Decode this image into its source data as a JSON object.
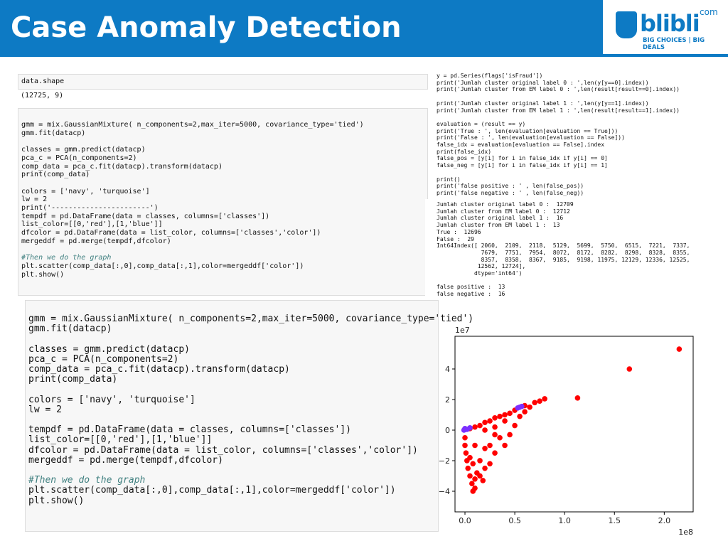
{
  "header": {
    "title": "Case Anomaly Detection"
  },
  "logo": {
    "brand": "blibli",
    "suffix": "com",
    "tagline_left": "BIG CHOICES",
    "tagline_right": "BIG DEALS"
  },
  "cell_shape": {
    "input": "data.shape",
    "output": "(12725, 9)"
  },
  "cell_gmm": {
    "blocks": [
      [
        "gmm = mix.GaussianMixture( n_components=2,max_iter=5000, covariance_type='tied')",
        "gmm.fit(datacp)"
      ],
      [
        "classes = gmm.predict(datacp)",
        "pca_c = PCA(n_components=2)",
        "comp_data = pca_c.fit(datacp).transform(datacp)",
        "print(comp_data)"
      ],
      [
        "colors = ['navy', 'turquoise']",
        "lw = 2",
        "print('-----------------------')",
        "tempdf = pd.DataFrame(data = classes, columns=['classes'])",
        "list_color=[[0,'red'],[1,'blue']]",
        "dfcolor = pd.DataFrame(data = list_color, columns=['classes','color'])",
        "mergeddf = pd.merge(tempdf,dfcolor)"
      ],
      [
        "#Then we do the graph",
        "plt.scatter(comp_data[:,0],comp_data[:,1],color=mergeddf['color'])",
        "plt.show()"
      ]
    ]
  },
  "cell_eval": {
    "blocks": [
      [
        "y = pd.Series(flags['isFraud'])",
        "print('Jumlah cluster original label 0 : ',len(y[y==0].index))",
        "print('Jumlah cluster from EM label 0 : ',len(result[result==0].index))"
      ],
      [
        "print('Jumlah cluster original label 1 : ',len(y[y==1].index))",
        "print('Jumlah cluster from EM label 1 : ',len(result[result==1].index))"
      ],
      [
        "evaluation = (result == y)",
        "print('True : ', len(evaluation[evaluation == True]))",
        "print('False : ', len(evaluation[evaluation == False]))",
        "false_idx = evaluation[evaluation == False].index",
        "print(false_idx)",
        "false_pos = [y[i] for i in false_idx if y[i] == 0]",
        "false_neg = [y[i] for i in false_idx if y[i] == 1]"
      ],
      [
        "print()",
        "print('false positive : ' , len(false_pos))",
        "print('false negative : ' , len(false_neg))"
      ]
    ],
    "output_blocks": [
      [
        "Jumlah cluster original label 0 :  12709",
        "Jumlah cluster from EM label 0 :  12712",
        "Jumlah cluster original label 1 :  16",
        "Jumlah cluster from EM label 1 :  13",
        "True :  12696",
        "False :  29",
        "Int64Index([ 2060,  2109,  2118,  5129,  5699,  5750,  6515,  7221,  7337,",
        "             7679,  7751,  7954,  8072,  8172,  8282,  8298,  8328,  8355,",
        "             8357,  8358,  8367,  9185,  9198, 11975, 12129, 12336, 12525,",
        "            12562, 12724],",
        "           dtype='int64')"
      ],
      [
        "false positive :  13",
        "false negative :  16"
      ]
    ]
  },
  "cell_gmm_zoom": {
    "blocks": [
      [
        "gmm = mix.GaussianMixture( n_components=2,max_iter=5000, covariance_type='tied')",
        "gmm.fit(datacp)"
      ],
      [
        "classes = gmm.predict(datacp)",
        "pca_c = PCA(n_components=2)",
        "comp_data = pca_c.fit(datacp).transform(datacp)",
        "print(comp_data)"
      ],
      [
        "colors = ['navy', 'turquoise']",
        "lw = 2"
      ],
      [
        "tempdf = pd.DataFrame(data = classes, columns=['classes'])",
        "list_color=[[0,'red'],[1,'blue']]",
        "dfcolor = pd.DataFrame(data = list_color, columns=['classes','color'])",
        "mergeddf = pd.merge(tempdf,dfcolor)"
      ],
      [
        "#Then we do the graph",
        "plt.scatter(comp_data[:,0],comp_data[:,1],color=mergeddf['color'])",
        "plt.show()"
      ]
    ]
  },
  "scatter_plot": {
    "type": "scatter",
    "x_offset_label": "1e8",
    "y_offset_label": "1e7",
    "xlim": [
      -0.1,
      2.29
    ],
    "ylim": [
      -5.35,
      6.14
    ],
    "xticks": [
      {
        "value": 0,
        "label": "0.0"
      },
      {
        "value": 0.5,
        "label": "0.5"
      },
      {
        "value": 1,
        "label": "1.0"
      },
      {
        "value": 1.5,
        "label": "1.5"
      },
      {
        "value": 2,
        "label": "2.0"
      }
    ],
    "yticks": [
      {
        "value": -4,
        "label": "−4"
      },
      {
        "value": -2,
        "label": "−2"
      },
      0,
      2,
      4
    ],
    "series": [
      {
        "color": "#ff0000",
        "x": [
          2.15,
          1.65,
          1.13,
          0.8,
          0.75,
          0.7,
          0.6,
          0.5,
          0.45,
          0.4,
          0.35,
          0.3,
          0.25,
          0.2,
          0.15,
          0.1,
          0.05,
          0.0,
          0.0,
          0.01,
          0.02,
          0.03,
          0.05,
          0.07,
          0.08,
          0.1,
          0.15,
          0.2,
          0.25,
          0.3,
          0.4,
          0.35,
          0.45,
          0.5,
          0.3,
          0.2,
          0.15,
          0.12,
          0.25,
          0.1,
          0.05,
          0.4,
          0.3,
          0.2,
          0.6,
          0.65,
          0.55,
          0.1,
          0.18,
          0.08
        ],
        "y": [
          5.3,
          4.0,
          2.1,
          2.05,
          1.9,
          1.8,
          1.6,
          1.3,
          1.1,
          1.0,
          0.9,
          0.8,
          0.6,
          0.5,
          0.3,
          0.2,
          0.1,
          -0.5,
          -1.0,
          -1.5,
          -2.0,
          -2.5,
          -3.0,
          -3.5,
          -4.0,
          -3.8,
          -3.0,
          -2.5,
          -2.2,
          -1.5,
          -1.0,
          -0.5,
          -0.3,
          0.3,
          0.2,
          -1.2,
          -2.0,
          -2.8,
          -1.0,
          -1.0,
          -1.8,
          0.6,
          -0.3,
          0.0,
          1.2,
          1.5,
          0.9,
          -3.2,
          -3.3,
          -2.2
        ]
      },
      {
        "color": "#7b2fff",
        "x": [
          0.0,
          0.02,
          -0.01,
          0.05,
          0.55,
          0.57,
          0.53
        ],
        "y": [
          0.1,
          0.05,
          0.0,
          0.15,
          1.5,
          1.55,
          1.45
        ]
      }
    ]
  }
}
